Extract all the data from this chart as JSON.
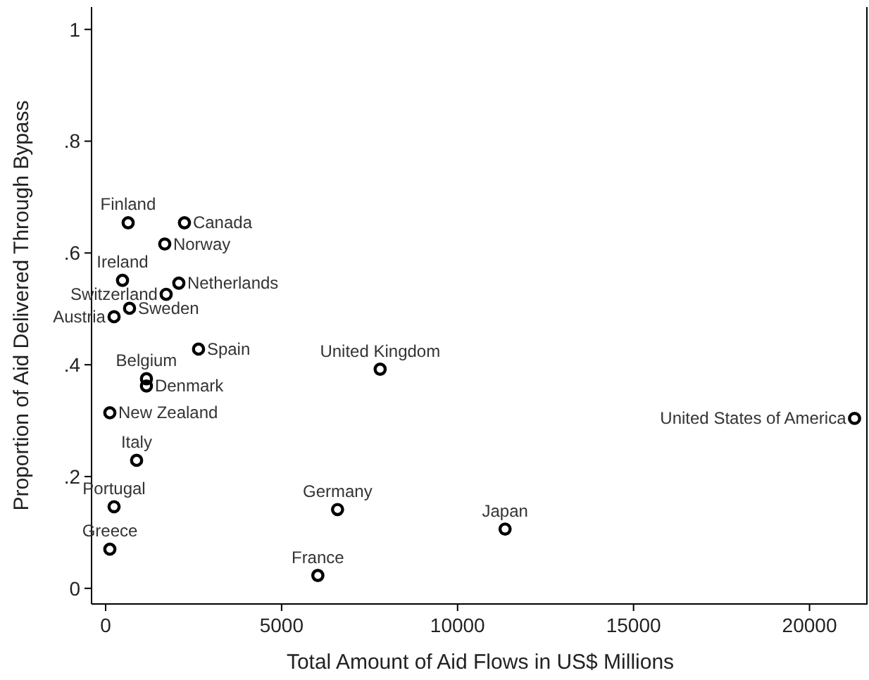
{
  "chart_data": {
    "type": "scatter",
    "xlabel": "Total Amount of Aid Flows in US$ Millions",
    "ylabel": "Proportion of Aid Delivered Through Bypass",
    "x": [
      640,
      2240,
      1680,
      480,
      2080,
      1720,
      680,
      240,
      2640,
      1160,
      1160,
      120,
      880,
      240,
      120,
      6590,
      6030,
      11350,
      7800,
      21280
    ],
    "series": [
      {
        "color": "#000000",
        "values": [
          0.654,
          0.654,
          0.616,
          0.551,
          0.546,
          0.526,
          0.501,
          0.486,
          0.428,
          0.375,
          0.362,
          0.314,
          0.229,
          0.146,
          0.07,
          0.141,
          0.023,
          0.106,
          0.392,
          0.304
        ]
      }
    ],
    "marker": "circle",
    "grid": false,
    "xlim": [
      -400,
      21650
    ],
    "xticks": [
      0,
      5000,
      10000,
      15000,
      20000
    ],
    "ylim": [
      -0.028,
      1.04
    ],
    "yticks": [
      0,
      {
        "value": 0.2,
        "label": ".2"
      },
      {
        "value": 0.4,
        "label": ".4"
      },
      {
        "value": 0.6,
        "label": ".6"
      },
      {
        "value": 0.8,
        "label": ".8"
      },
      1
    ],
    "annotations": [
      {
        "text": "Finland",
        "x": 640,
        "y": 0.654
      },
      {
        "text": "Canada",
        "x": 2240,
        "y": 0.654
      },
      {
        "text": "Norway",
        "x": 1680,
        "y": 0.616
      },
      {
        "text": "Ireland",
        "x": 480,
        "y": 0.551
      },
      {
        "text": "Netherlands",
        "x": 2080,
        "y": 0.546
      },
      {
        "text": "Switzerland",
        "x": 1720,
        "y": 0.526
      },
      {
        "text": "Sweden",
        "x": 680,
        "y": 0.501
      },
      {
        "text": "Austria",
        "x": 240,
        "y": 0.486
      },
      {
        "text": "Spain",
        "x": 2640,
        "y": 0.428
      },
      {
        "text": "Belgium",
        "x": 1160,
        "y": 0.375
      },
      {
        "text": "Denmark",
        "x": 1160,
        "y": 0.362
      },
      {
        "text": "New Zealand",
        "x": 120,
        "y": 0.314
      },
      {
        "text": "Italy",
        "x": 880,
        "y": 0.229
      },
      {
        "text": "Portugal",
        "x": 240,
        "y": 0.146
      },
      {
        "text": "Greece",
        "x": 120,
        "y": 0.07
      },
      {
        "text": "Germany",
        "x": 6590,
        "y": 0.141
      },
      {
        "text": "France",
        "x": 6030,
        "y": 0.023
      },
      {
        "text": "Japan",
        "x": 11350,
        "y": 0.106
      },
      {
        "text": "United Kingdom",
        "x": 7800,
        "y": 0.392
      },
      {
        "text": "United States of America",
        "x": 21280,
        "y": 0.304
      }
    ]
  }
}
